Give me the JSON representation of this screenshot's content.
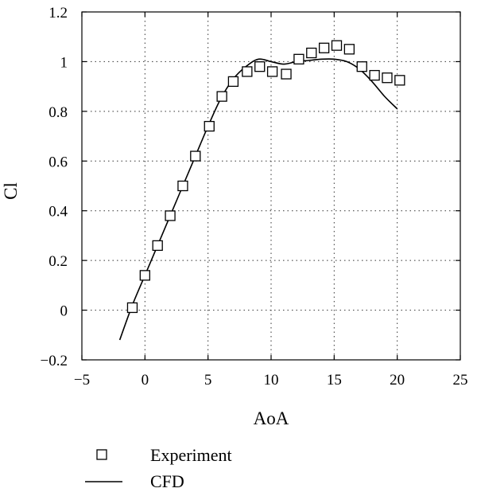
{
  "chart_data": {
    "type": "scatter",
    "title": "",
    "xlabel": "AoA",
    "ylabel": "Cl",
    "xlim": [
      -5,
      25
    ],
    "ylim": [
      -0.2,
      1.2
    ],
    "xticks": [
      -5,
      0,
      5,
      10,
      15,
      20,
      25
    ],
    "yticks": [
      -0.2,
      0,
      0.2,
      0.4,
      0.6,
      0.8,
      1,
      1.2
    ],
    "xtick_labels": [
      "−5",
      "0",
      "5",
      "10",
      "15",
      "20",
      "25"
    ],
    "ytick_labels": [
      "−0.2",
      "0",
      "0.2",
      "0.4",
      "0.6",
      "0.8",
      "1",
      "1.2"
    ],
    "grid": true,
    "grid_style": "dotted",
    "legend_position": "below",
    "series": [
      {
        "name": "Experiment",
        "kind": "markers",
        "marker": "open-square",
        "color": "#000000",
        "points": [
          [
            -1,
            0.01
          ],
          [
            0,
            0.14
          ],
          [
            1,
            0.26
          ],
          [
            2,
            0.38
          ],
          [
            3,
            0.5
          ],
          [
            4,
            0.62
          ],
          [
            5.1,
            0.74
          ],
          [
            6.1,
            0.86
          ],
          [
            7,
            0.92
          ],
          [
            8.1,
            0.96
          ],
          [
            9.1,
            0.98
          ],
          [
            10.1,
            0.96
          ],
          [
            11.2,
            0.95
          ],
          [
            12.2,
            1.01
          ],
          [
            13.2,
            1.035
          ],
          [
            14.2,
            1.055
          ],
          [
            15.2,
            1.065
          ],
          [
            16.2,
            1.05
          ],
          [
            17.2,
            0.98
          ],
          [
            18.2,
            0.945
          ],
          [
            19.2,
            0.935
          ],
          [
            20.2,
            0.925
          ]
        ]
      },
      {
        "name": "CFD",
        "kind": "line",
        "color": "#000000",
        "points": [
          [
            -2,
            -0.12
          ],
          [
            -1,
            0.02
          ],
          [
            0,
            0.14
          ],
          [
            1,
            0.26
          ],
          [
            2,
            0.38
          ],
          [
            3,
            0.5
          ],
          [
            4,
            0.62
          ],
          [
            5,
            0.74
          ],
          [
            6,
            0.85
          ],
          [
            7,
            0.93
          ],
          [
            8,
            0.98
          ],
          [
            9,
            1.01
          ],
          [
            10,
            1.0
          ],
          [
            11,
            0.99
          ],
          [
            12,
            1.0
          ],
          [
            13,
            1.005
          ],
          [
            14,
            1.01
          ],
          [
            15,
            1.01
          ],
          [
            16,
            1.0
          ],
          [
            17,
            0.97
          ],
          [
            18,
            0.92
          ],
          [
            19,
            0.86
          ],
          [
            20,
            0.81
          ]
        ]
      }
    ]
  }
}
